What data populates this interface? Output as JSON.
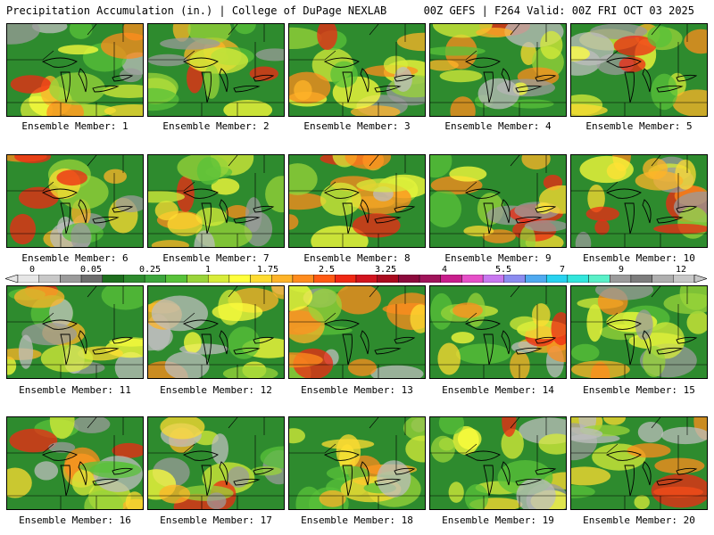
{
  "header": {
    "left_title": "Precipitation Accumulation (in.) | College of DuPage NEXLAB",
    "right_title": "00Z GEFS | F264 Valid: 00Z FRI OCT 03 2025"
  },
  "members": [
    {
      "label": "Ensemble Member: 1"
    },
    {
      "label": "Ensemble Member: 2"
    },
    {
      "label": "Ensemble Member: 3"
    },
    {
      "label": "Ensemble Member: 4"
    },
    {
      "label": "Ensemble Member: 5"
    },
    {
      "label": "Ensemble Member: 6"
    },
    {
      "label": "Ensemble Member: 7"
    },
    {
      "label": "Ensemble Member: 8"
    },
    {
      "label": "Ensemble Member: 9"
    },
    {
      "label": "Ensemble Member: 10"
    },
    {
      "label": "Ensemble Member: 11"
    },
    {
      "label": "Ensemble Member: 12"
    },
    {
      "label": "Ensemble Member: 13"
    },
    {
      "label": "Ensemble Member: 14"
    },
    {
      "label": "Ensemble Member: 15"
    },
    {
      "label": "Ensemble Member: 16"
    },
    {
      "label": "Ensemble Member: 17"
    },
    {
      "label": "Ensemble Member: 18"
    },
    {
      "label": "Ensemble Member: 19"
    },
    {
      "label": "Ensemble Member: 20"
    }
  ],
  "colorbar": {
    "tick_labels": [
      "0",
      "0.05",
      "0.25",
      "1",
      "1.75",
      "2.5",
      "3.25",
      "4",
      "5.5",
      "7",
      "9",
      "12"
    ],
    "colors": [
      "#e6e6e6",
      "#c8c8c8",
      "#9b9b9b",
      "#6e6e6e",
      "#1e6e1e",
      "#2e8b2e",
      "#3ca53c",
      "#58c23a",
      "#9ad43a",
      "#d8ec3a",
      "#ffff3c",
      "#ffdc32",
      "#ffb428",
      "#ff8c1e",
      "#ff5a14",
      "#f02814",
      "#d2141e",
      "#aa0a1e",
      "#8c0a3c",
      "#a0145a",
      "#c81e8c",
      "#e650c8",
      "#c878f0",
      "#8c8cf0",
      "#50aaf0",
      "#28d2f0",
      "#32e6dc",
      "#5af0c8",
      "#9b9b9b",
      "#7d7d7d",
      "#afafaf",
      "#c8c8c8"
    ]
  }
}
